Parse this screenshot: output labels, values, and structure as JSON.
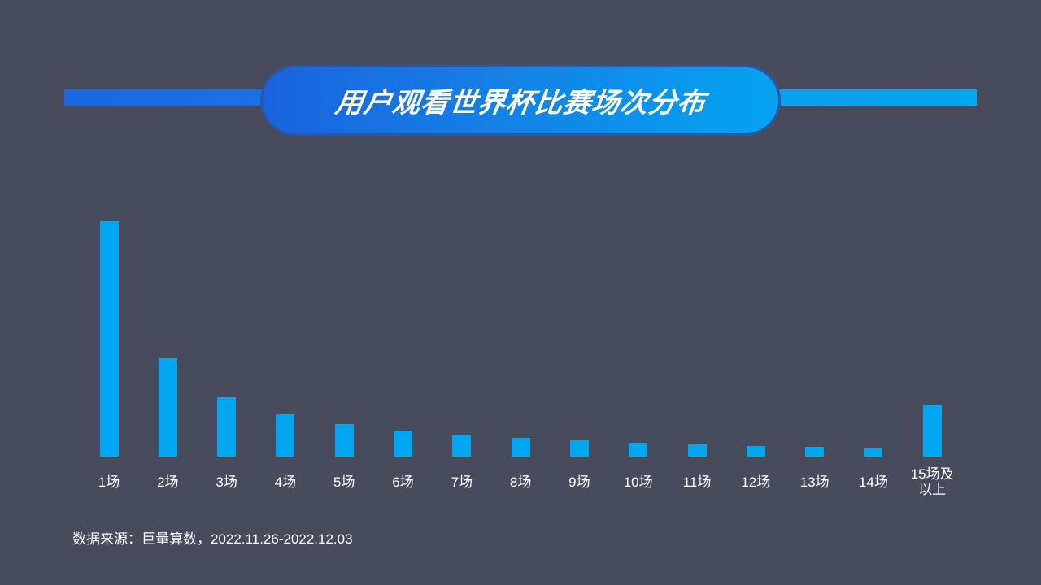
{
  "title": "用户观看世界杯比赛场次分布",
  "colors": {
    "background": "#484b5c",
    "bar": "#03a6f0",
    "title_gradient_start": "#1a63df",
    "title_gradient_end": "#04a4f0",
    "axis": "#d8d8de"
  },
  "chart_data": {
    "type": "bar",
    "title": "用户观看世界杯比赛场次分布",
    "xlabel": "",
    "ylabel": "",
    "y_axis_visible": false,
    "grid": false,
    "legend": null,
    "value_note": "No y-axis scale shown; values are relative bar heights (pixels)",
    "categories": [
      "1场",
      "2场",
      "3场",
      "4场",
      "5场",
      "6场",
      "7场",
      "8场",
      "9场",
      "10场",
      "11场",
      "12场",
      "13场",
      "14场",
      "15场及以上"
    ],
    "values": [
      290,
      121,
      73,
      52,
      40,
      32,
      27,
      23,
      20,
      17,
      15,
      13,
      12,
      10,
      64
    ]
  },
  "chart": {
    "labels": [
      "1场",
      "2场",
      "3场",
      "4场",
      "5场",
      "6场",
      "7场",
      "8场",
      "9场",
      "10场",
      "11场",
      "12场",
      "13场",
      "14场",
      "15场及\n以上"
    ]
  },
  "footer": {
    "source": "数据来源：巨量算数，2022.11.26-2022.12.03"
  }
}
